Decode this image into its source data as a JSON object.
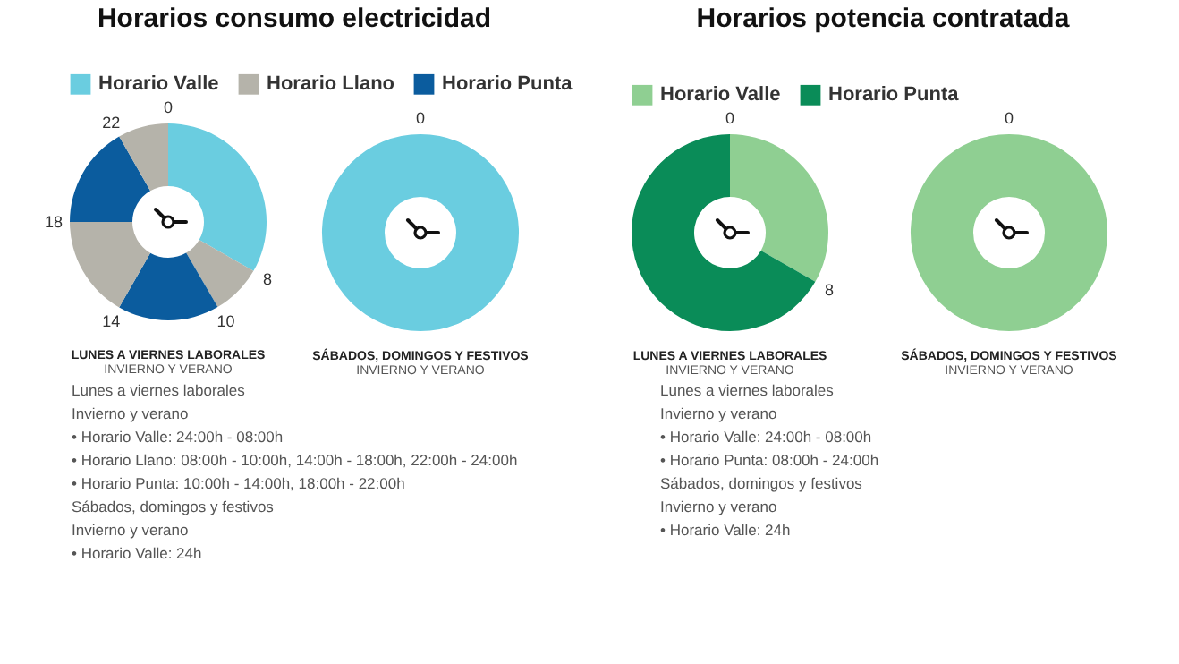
{
  "chart_data": [
    {
      "type": "other",
      "title": "Horarios consumo electricidad"
    },
    {
      "type": "donut",
      "title": "LUNES A VIERNES LABORALES",
      "subtitle": "INVIERNO Y VERANO",
      "legend": "top",
      "categories": [
        "Horario Valle",
        "Horario Llano",
        "Horario Punta",
        null,
        null,
        null
      ],
      "values": [
        33.3,
        8.3,
        16.7,
        16.7,
        16.7,
        8.3
      ],
      "colors": [
        "#6acde0",
        "#b5b3aa",
        "#0b5c9e",
        "#b5b3aa",
        "#0b5c9e",
        "#b5b3aa"
      ],
      "annotations": [
        "0",
        "8",
        "10",
        "14",
        "18",
        "22"
      ]
    },
    {
      "type": "donut",
      "title": "SÁBADOS, DOMINGOS Y FESTIVOS",
      "subtitle": "INVIERNO Y VERANO",
      "categories": [
        null
      ],
      "values": [
        100
      ],
      "colors": [
        "#6acde0"
      ],
      "annotations": [
        "0"
      ]
    },
    {
      "type": "other",
      "annotations": [
        "Lunes a viernes laborales",
        "Invierno y verano",
        "• Horario Valle: 24:00h - 08:00h",
        "• Horario Llano: 08:00h - 10:00h, 14:00h - 18:00h, 22:00h - 24:00h",
        "• Horario Punta: 10:00h - 14:00h, 18:00h - 22:00h",
        "Sábados, domingos y festivos",
        "Invierno y verano",
        "• Horario Valle: 24h"
      ]
    },
    {
      "type": "other",
      "title": "Horarios potencia contratada"
    },
    {
      "type": "donut",
      "title": "LUNES A VIERNES LABORALES",
      "subtitle": "INVIERNO Y VERANO",
      "legend": "top",
      "categories": [
        "Horario Valle",
        "Horario Punta"
      ],
      "values": [
        33.3,
        66.7
      ],
      "colors": [
        "#8fcf92",
        "#0a8c58"
      ],
      "annotations": [
        "0",
        "8"
      ]
    },
    {
      "type": "donut",
      "title": "SÁBADOS, DOMINGOS Y FESTIVOS",
      "subtitle": "INVIERNO Y VERANO",
      "categories": [
        null
      ],
      "values": [
        100
      ],
      "colors": [
        "#8fcf92"
      ],
      "annotations": [
        "0"
      ]
    },
    {
      "type": "other",
      "annotations": [
        "Lunes a viernes laborales",
        "Invierno y verano",
        "• Horario Valle: 24:00h - 08:00h",
        "• Horario Punta: 08:00h - 24:00h",
        "Sábados, domingos y festivos",
        "Invierno y verano",
        "• Horario Valle: 24h"
      ]
    }
  ]
}
